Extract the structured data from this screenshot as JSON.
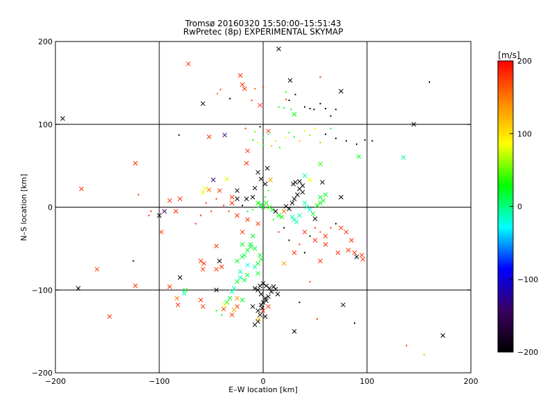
{
  "chart_data": {
    "type": "scatter",
    "title": "Tromsø 20160320 15:50:00–15:51:43",
    "subtitle": "RwPretec (8p) EXPERIMENTAL SKYMAP",
    "xlabel": "E–W location [km]",
    "ylabel": "N–S location [km]",
    "xlim": [
      -200,
      200
    ],
    "ylim": [
      -200,
      200
    ],
    "x_ticks": [
      -200,
      -100,
      0,
      100,
      200
    ],
    "y_ticks": [
      -200,
      -100,
      0,
      100,
      200
    ],
    "grid": true,
    "colorbar": {
      "label": "[m/s]",
      "range": [
        -200,
        200
      ],
      "ticks": [
        200,
        100,
        0,
        -100,
        -200
      ],
      "colors": [
        "#000000",
        "#3a0060",
        "#0000ff",
        "#00ffff",
        "#00ff00",
        "#ffff00",
        "#ff8800",
        "#ff0000"
      ]
    },
    "points": [
      [
        -175,
        22,
        180,
        "x"
      ],
      [
        -123,
        53,
        180,
        "x"
      ],
      [
        -193,
        107,
        -200,
        "x"
      ],
      [
        -72,
        173,
        180,
        "x"
      ],
      [
        -58,
        125,
        -200,
        "x"
      ],
      [
        -22,
        159,
        180,
        "x"
      ],
      [
        -18,
        143,
        180,
        "x"
      ],
      [
        -20,
        148,
        180,
        "x"
      ],
      [
        -3,
        123,
        180,
        "x"
      ],
      [
        15,
        191,
        -200,
        "x"
      ],
      [
        26,
        153,
        -200,
        "x"
      ],
      [
        75,
        140,
        -200,
        "x"
      ],
      [
        -32,
        131,
        -200,
        "d"
      ],
      [
        -41,
        142,
        180,
        "d"
      ],
      [
        -44,
        137,
        160,
        "d"
      ],
      [
        -8,
        143,
        160,
        "d"
      ],
      [
        -11,
        129,
        180,
        "d"
      ],
      [
        0,
        145,
        180,
        "d"
      ],
      [
        22,
        130,
        180,
        "d"
      ],
      [
        20,
        120,
        20,
        "d"
      ],
      [
        22,
        139,
        30,
        "d"
      ],
      [
        25,
        129,
        -200,
        "d"
      ],
      [
        31,
        136,
        -200,
        "d"
      ],
      [
        40,
        121,
        -200,
        "d"
      ],
      [
        45,
        119,
        -200,
        "d"
      ],
      [
        49,
        118,
        -200,
        "d"
      ],
      [
        55,
        125,
        -200,
        "d"
      ],
      [
        60,
        119,
        -200,
        "d"
      ],
      [
        65,
        110,
        -200,
        "d"
      ],
      [
        70,
        118,
        -200,
        "d"
      ],
      [
        55,
        157,
        180,
        "d"
      ],
      [
        160,
        151,
        -200,
        "d"
      ],
      [
        30,
        112,
        30,
        "x"
      ],
      [
        27,
        118,
        20,
        "d"
      ],
      [
        15,
        121,
        30,
        "d"
      ],
      [
        145,
        100,
        -200,
        "x"
      ],
      [
        135,
        60,
        -10,
        "x"
      ],
      [
        92,
        61,
        20,
        "x"
      ],
      [
        -52,
        85,
        180,
        "x"
      ],
      [
        -37,
        87,
        -140,
        "x"
      ],
      [
        -15,
        68,
        180,
        "x"
      ],
      [
        -16,
        53,
        180,
        "x"
      ],
      [
        -58,
        18,
        80,
        "x"
      ],
      [
        -56,
        23,
        80,
        "x"
      ],
      [
        -52,
        21,
        150,
        "x"
      ],
      [
        -48,
        33,
        -140,
        "x"
      ],
      [
        -35,
        34,
        80,
        "x"
      ],
      [
        -25,
        20,
        -200,
        "x"
      ],
      [
        -81,
        87,
        -200,
        "d"
      ],
      [
        -17,
        95,
        180,
        "d"
      ],
      [
        -8,
        91,
        40,
        "d"
      ],
      [
        -3,
        97,
        -200,
        "d"
      ],
      [
        -10,
        81,
        20,
        "d"
      ],
      [
        -5,
        78,
        80,
        "d"
      ],
      [
        0,
        84,
        20,
        "d"
      ],
      [
        0,
        75,
        20,
        "d"
      ],
      [
        5,
        88,
        10,
        "d"
      ],
      [
        8,
        74,
        120,
        "d"
      ],
      [
        12,
        80,
        110,
        "d"
      ],
      [
        16,
        72,
        40,
        "d"
      ],
      [
        22,
        84,
        80,
        "d"
      ],
      [
        25,
        90,
        20,
        "d"
      ],
      [
        30,
        85,
        20,
        "d"
      ],
      [
        35,
        80,
        120,
        "d"
      ],
      [
        40,
        92,
        80,
        "d"
      ],
      [
        45,
        87,
        50,
        "d"
      ],
      [
        50,
        95,
        80,
        "d"
      ],
      [
        55,
        78,
        130,
        "d"
      ],
      [
        60,
        88,
        -200,
        "d"
      ],
      [
        65,
        95,
        20,
        "d"
      ],
      [
        70,
        83,
        -200,
        "d"
      ],
      [
        80,
        80,
        -200,
        "d"
      ],
      [
        90,
        76,
        -200,
        "d"
      ],
      [
        98,
        81,
        -200,
        "d"
      ],
      [
        105,
        80,
        -200,
        "d"
      ],
      [
        5,
        92,
        180,
        "x"
      ],
      [
        4,
        47,
        -200,
        "x"
      ],
      [
        7,
        33,
        130,
        "x"
      ],
      [
        -5,
        42,
        -200,
        "x"
      ],
      [
        -2,
        34,
        -200,
        "x"
      ],
      [
        2,
        28,
        -200,
        "x"
      ],
      [
        -8,
        23,
        -200,
        "x"
      ],
      [
        -10,
        12,
        -200,
        "x"
      ],
      [
        -16,
        10,
        -200,
        "x"
      ],
      [
        -25,
        10,
        -200,
        "x"
      ],
      [
        -30,
        5,
        180,
        "x"
      ],
      [
        -5,
        5,
        30,
        "x"
      ],
      [
        -2,
        3,
        20,
        "x"
      ],
      [
        0,
        0,
        20,
        "x"
      ],
      [
        3,
        5,
        30,
        "x"
      ],
      [
        6,
        0,
        40,
        "x"
      ],
      [
        9,
        -3,
        20,
        "x"
      ],
      [
        12,
        -5,
        -200,
        "x"
      ],
      [
        15,
        -10,
        20,
        "x"
      ],
      [
        18,
        -12,
        30,
        "x"
      ],
      [
        20,
        -5,
        150,
        "x"
      ],
      [
        22,
        1,
        -200,
        "x"
      ],
      [
        25,
        -2,
        -200,
        "x"
      ],
      [
        28,
        5,
        -200,
        "x"
      ],
      [
        30,
        10,
        -200,
        "x"
      ],
      [
        33,
        15,
        -200,
        "x"
      ],
      [
        35,
        22,
        -200,
        "x"
      ],
      [
        38,
        18,
        -200,
        "x"
      ],
      [
        40,
        5,
        -10,
        "x"
      ],
      [
        42,
        0,
        -10,
        "x"
      ],
      [
        45,
        -3,
        -20,
        "x"
      ],
      [
        48,
        -8,
        20,
        "x"
      ],
      [
        50,
        -14,
        -200,
        "x"
      ],
      [
        52,
        2,
        30,
        "x"
      ],
      [
        55,
        5,
        30,
        "x"
      ],
      [
        28,
        -12,
        -10,
        "x"
      ],
      [
        30,
        -15,
        -10,
        "x"
      ],
      [
        35,
        -10,
        -10,
        "x"
      ],
      [
        32,
        -18,
        -10,
        "x"
      ],
      [
        29,
        28,
        -200,
        "x"
      ],
      [
        31,
        30,
        -200,
        "x"
      ],
      [
        35,
        31,
        -200,
        "x"
      ],
      [
        38,
        26,
        -200,
        "x"
      ],
      [
        40,
        38,
        -10,
        "x"
      ],
      [
        45,
        33,
        80,
        "x"
      ],
      [
        55,
        52,
        40,
        "x"
      ],
      [
        57,
        30,
        -200,
        "x"
      ],
      [
        55,
        12,
        20,
        "x"
      ],
      [
        58,
        8,
        20,
        "x"
      ],
      [
        60,
        15,
        20,
        "x"
      ],
      [
        75,
        12,
        -200,
        "x"
      ],
      [
        -5,
        -20,
        180,
        "x"
      ],
      [
        -10,
        -35,
        20,
        "x"
      ],
      [
        -12,
        -45,
        20,
        "x"
      ],
      [
        -15,
        -52,
        20,
        "x"
      ],
      [
        -18,
        -58,
        20,
        "x"
      ],
      [
        -20,
        -60,
        10,
        "x"
      ],
      [
        -15,
        -70,
        -20,
        "x"
      ],
      [
        -8,
        -72,
        -10,
        "x"
      ],
      [
        -5,
        -80,
        20,
        "x"
      ],
      [
        -15,
        -82,
        20,
        "x"
      ],
      [
        -18,
        -88,
        20,
        "x"
      ],
      [
        -22,
        -85,
        -10,
        "x"
      ],
      [
        -25,
        -90,
        20,
        "x"
      ],
      [
        -28,
        -98,
        -10,
        "x"
      ],
      [
        -30,
        -102,
        -10,
        "x"
      ],
      [
        -32,
        -110,
        20,
        "x"
      ],
      [
        -35,
        -115,
        30,
        "x"
      ],
      [
        -37,
        -118,
        80,
        "x"
      ],
      [
        -38,
        -123,
        180,
        "x"
      ],
      [
        -25,
        -120,
        180,
        "x"
      ],
      [
        -30,
        -130,
        180,
        "x"
      ],
      [
        -28,
        -124,
        130,
        "x"
      ],
      [
        -25,
        -110,
        140,
        "x"
      ],
      [
        -20,
        -112,
        20,
        "x"
      ],
      [
        -10,
        -120,
        -200,
        "x"
      ],
      [
        -5,
        -125,
        -200,
        "x"
      ],
      [
        -2,
        -118,
        -200,
        "x"
      ],
      [
        0,
        -115,
        -200,
        "x"
      ],
      [
        2,
        -110,
        -200,
        "x"
      ],
      [
        -2,
        -105,
        -200,
        "x"
      ],
      [
        -5,
        -100,
        -200,
        "x"
      ],
      [
        -8,
        -98,
        -200,
        "x"
      ],
      [
        -3,
        -95,
        -200,
        "x"
      ],
      [
        0,
        -92,
        -200,
        "x"
      ],
      [
        3,
        -95,
        -200,
        "x"
      ],
      [
        6,
        -98,
        -200,
        "x"
      ],
      [
        8,
        -102,
        -200,
        "x"
      ],
      [
        10,
        -96,
        -200,
        "x"
      ],
      [
        12,
        -99,
        -200,
        "x"
      ],
      [
        14,
        -105,
        -200,
        "x"
      ],
      [
        5,
        -108,
        -200,
        "x"
      ],
      [
        3,
        -113,
        -200,
        "x"
      ],
      [
        -1,
        -122,
        -200,
        "x"
      ],
      [
        -3,
        -130,
        -200,
        "x"
      ],
      [
        -5,
        -138,
        -200,
        "x"
      ],
      [
        -8,
        -142,
        -200,
        "x"
      ],
      [
        -4,
        -135,
        120,
        "x"
      ],
      [
        2,
        -132,
        -200,
        "x"
      ],
      [
        5,
        -120,
        180,
        "x"
      ],
      [
        0,
        -125,
        180,
        "x"
      ],
      [
        30,
        -150,
        -200,
        "x"
      ],
      [
        77,
        -118,
        -200,
        "x"
      ],
      [
        173,
        -155,
        -200,
        "x"
      ],
      [
        -148,
        -132,
        180,
        "x"
      ],
      [
        -160,
        -75,
        180,
        "x"
      ],
      [
        -178,
        -98,
        -200,
        "x"
      ],
      [
        -123,
        -95,
        180,
        "x"
      ],
      [
        -90,
        -96,
        180,
        "x"
      ],
      [
        -83,
        -110,
        150,
        "x"
      ],
      [
        -82,
        -118,
        180,
        "x"
      ],
      [
        -60,
        -65,
        180,
        "x"
      ],
      [
        -57,
        -68,
        180,
        "x"
      ],
      [
        -58,
        -75,
        180,
        "x"
      ],
      [
        -45,
        -75,
        180,
        "x"
      ],
      [
        -40,
        -72,
        180,
        "x"
      ],
      [
        -42,
        -65,
        -200,
        "x"
      ],
      [
        -45,
        -47,
        180,
        "x"
      ],
      [
        -45,
        -100,
        -200,
        "x"
      ],
      [
        -58,
        -120,
        180,
        "x"
      ],
      [
        -60,
        -112,
        180,
        "x"
      ],
      [
        -75,
        -100,
        20,
        "x"
      ],
      [
        -76,
        -104,
        -10,
        "x"
      ],
      [
        -80,
        -85,
        -200,
        "x"
      ],
      [
        -95,
        -5,
        -140,
        "x"
      ],
      [
        -100,
        -10,
        -200,
        "x"
      ],
      [
        -98,
        -30,
        180,
        "x"
      ],
      [
        -80,
        10,
        180,
        "x"
      ],
      [
        -90,
        8,
        180,
        "x"
      ],
      [
        -84,
        -5,
        180,
        "x"
      ],
      [
        -42,
        20,
        180,
        "x"
      ],
      [
        -30,
        12,
        180,
        "x"
      ],
      [
        -20,
        -30,
        180,
        "x"
      ],
      [
        -25,
        -10,
        180,
        "x"
      ],
      [
        -15,
        -15,
        180,
        "x"
      ],
      [
        40,
        -30,
        180,
        "x"
      ],
      [
        50,
        -40,
        180,
        "x"
      ],
      [
        60,
        -45,
        180,
        "x"
      ],
      [
        75,
        -25,
        180,
        "x"
      ],
      [
        80,
        -30,
        180,
        "x"
      ],
      [
        85,
        -40,
        180,
        "x"
      ],
      [
        82,
        -52,
        180,
        "x"
      ],
      [
        88,
        -55,
        180,
        "x"
      ],
      [
        90,
        -60,
        -200,
        "x"
      ],
      [
        95,
        -58,
        180,
        "x"
      ],
      [
        96,
        -63,
        180,
        "x"
      ],
      [
        72,
        -55,
        180,
        "x"
      ],
      [
        60,
        -35,
        180,
        "x"
      ],
      [
        55,
        -65,
        180,
        "x"
      ],
      [
        30,
        -55,
        180,
        "x"
      ],
      [
        20,
        -68,
        130,
        "x"
      ],
      [
        -20,
        -45,
        20,
        "x"
      ],
      [
        -12,
        -48,
        20,
        "x"
      ],
      [
        -8,
        -50,
        20,
        "x"
      ],
      [
        -3,
        -58,
        20,
        "x"
      ],
      [
        -2,
        -63,
        20,
        "x"
      ],
      [
        -5,
        -68,
        20,
        "x"
      ],
      [
        -25,
        -65,
        20,
        "x"
      ],
      [
        -22,
        -78,
        -10,
        "x"
      ],
      [
        -125,
        -65,
        -200,
        "d"
      ],
      [
        -120,
        15,
        180,
        "d"
      ],
      [
        -108,
        -5,
        180,
        "d"
      ],
      [
        -110,
        -10,
        180,
        "d"
      ],
      [
        -65,
        -20,
        180,
        "d"
      ],
      [
        -60,
        -10,
        180,
        "d"
      ],
      [
        -55,
        5,
        180,
        "d"
      ],
      [
        -50,
        -5,
        180,
        "d"
      ],
      [
        -45,
        10,
        180,
        "d"
      ],
      [
        -38,
        2,
        180,
        "d"
      ],
      [
        -33,
        -5,
        180,
        "d"
      ],
      [
        -20,
        2,
        -200,
        "d"
      ],
      [
        -15,
        -5,
        20,
        "d"
      ],
      [
        -10,
        -3,
        40,
        "d"
      ],
      [
        -5,
        0,
        20,
        "d"
      ],
      [
        2,
        12,
        20,
        "d"
      ],
      [
        5,
        20,
        40,
        "d"
      ],
      [
        10,
        -15,
        20,
        "d"
      ],
      [
        15,
        -30,
        180,
        "d"
      ],
      [
        20,
        -25,
        -200,
        "d"
      ],
      [
        25,
        -40,
        -200,
        "d"
      ],
      [
        35,
        -45,
        180,
        "d"
      ],
      [
        40,
        -55,
        -200,
        "d"
      ],
      [
        45,
        -35,
        -200,
        "d"
      ],
      [
        50,
        -25,
        180,
        "d"
      ],
      [
        55,
        -30,
        180,
        "d"
      ],
      [
        65,
        -25,
        180,
        "d"
      ],
      [
        70,
        -20,
        -200,
        "d"
      ],
      [
        88,
        -140,
        -200,
        "d"
      ],
      [
        52,
        -135,
        180,
        "d"
      ],
      [
        35,
        -115,
        -200,
        "d"
      ],
      [
        45,
        -90,
        180,
        "d"
      ],
      [
        138,
        -167,
        180,
        "d"
      ],
      [
        155,
        -178,
        120,
        "d"
      ],
      [
        -40,
        -130,
        20,
        "d"
      ],
      [
        -45,
        -125,
        30,
        "d"
      ]
    ]
  }
}
